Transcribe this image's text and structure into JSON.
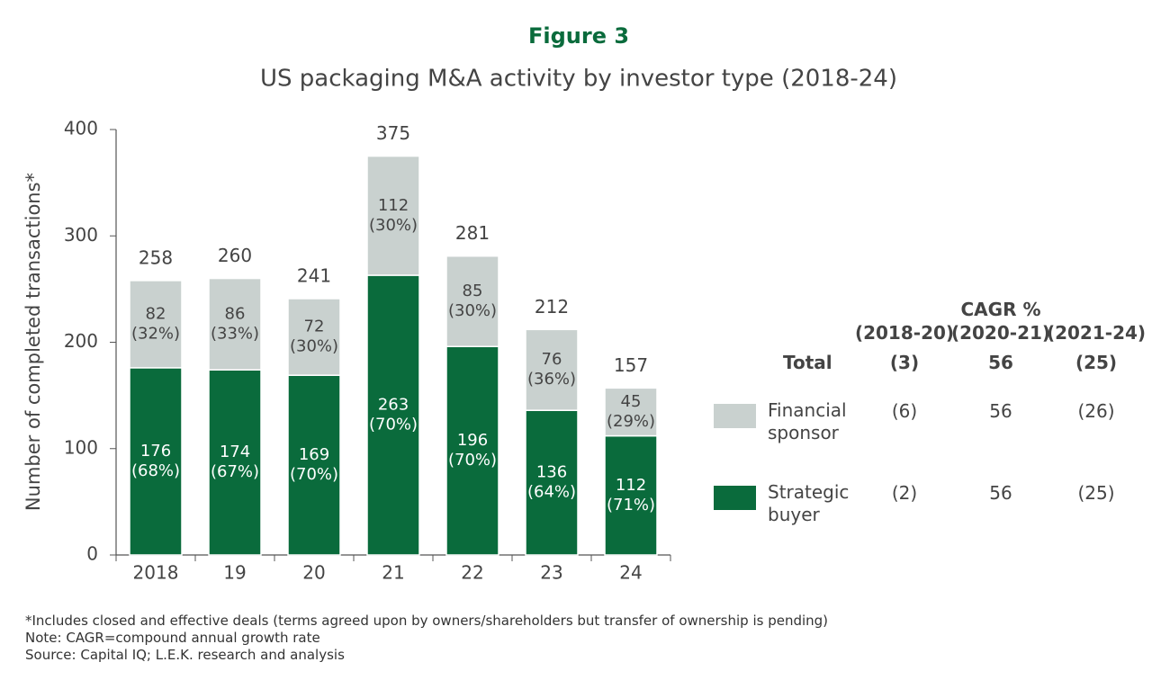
{
  "chart_data": {
    "type": "stacked_bar",
    "figure_label": "Figure 3",
    "title": "US packaging M&A activity by investor type (2018-24)",
    "ylabel": "Number of completed transactions*",
    "categories": [
      "2018",
      "19",
      "20",
      "21",
      "22",
      "23",
      "24"
    ],
    "series": [
      {
        "name": "Strategic buyer",
        "color": "#0a6b3c",
        "values": [
          176,
          174,
          169,
          263,
          196,
          136,
          112
        ],
        "share_labels": [
          "(68%)",
          "(67%)",
          "(70%)",
          "(70%)",
          "(70%)",
          "(64%)",
          "(71%)"
        ],
        "cagr": [
          "(2)",
          "56",
          "(25)"
        ]
      },
      {
        "name": "Financial sponsor",
        "color": "#c9d1cf",
        "values": [
          82,
          86,
          72,
          112,
          85,
          76,
          45
        ],
        "share_labels": [
          "(32%)",
          "(33%)",
          "(30%)",
          "(30%)",
          "(30%)",
          "(36%)",
          "(29%)"
        ],
        "cagr": [
          "(6)",
          "56",
          "(26)"
        ]
      }
    ],
    "totals": [
      258,
      260,
      241,
      375,
      281,
      212,
      157
    ],
    "ylim": [
      0,
      400
    ],
    "yticks": [
      0,
      100,
      200,
      300,
      400
    ],
    "cagr_title": "CAGR %",
    "cagr_columns": [
      "(2018-20)",
      "(2020-21)",
      "(2021-24)"
    ],
    "total_label": "Total",
    "total_cagr": [
      "(3)",
      "56",
      "(25)"
    ],
    "footnotes": [
      "*Includes closed and effective deals (terms agreed upon by owners/shareholders but transfer of ownership is pending)",
      "Note: CAGR=compound annual growth rate",
      "Source: Capital IQ; L.E.K. research and analysis"
    ]
  }
}
